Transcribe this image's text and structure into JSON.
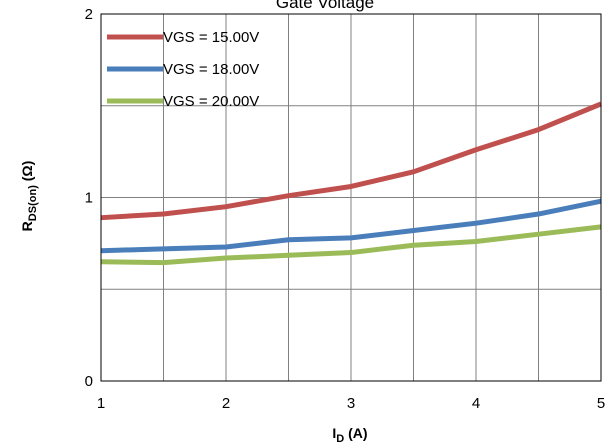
{
  "chart_data": {
    "type": "line",
    "title": "Gate Voltage",
    "xlabel": "I",
    "xlabel_sub": "D",
    "xlabel_unit": " (A)",
    "ylabel": "R",
    "ylabel_sub": "DS(on)",
    "ylabel_unit": " (Ω)",
    "xlim": [
      1,
      5
    ],
    "ylim": [
      0,
      2
    ],
    "x_ticks": [
      1,
      2,
      3,
      4,
      5
    ],
    "y_ticks": [
      0,
      1,
      2
    ],
    "y_gridlines": [
      0,
      0.5,
      1,
      1.5,
      2
    ],
    "x_gridlines": [
      1,
      1.5,
      2,
      2.5,
      3,
      3.5,
      4,
      4.5,
      5
    ],
    "grid": true,
    "legend_position": "top-left",
    "x": [
      1,
      1.5,
      2,
      2.5,
      3,
      3.5,
      4,
      4.5,
      5
    ],
    "series": [
      {
        "name": "VGS = 15.00V",
        "color": "#c0504d",
        "values": [
          0.89,
          0.91,
          0.95,
          1.01,
          1.06,
          1.14,
          1.26,
          1.37,
          1.51
        ]
      },
      {
        "name": "VGS = 18.00V",
        "color": "#4a7ebb",
        "values": [
          0.71,
          0.72,
          0.73,
          0.77,
          0.78,
          0.82,
          0.86,
          0.91,
          0.98
        ]
      },
      {
        "name": "VGS = 20.00V",
        "color": "#9bbb59",
        "values": [
          0.65,
          0.645,
          0.67,
          0.685,
          0.7,
          0.74,
          0.76,
          0.8,
          0.84
        ]
      }
    ]
  }
}
